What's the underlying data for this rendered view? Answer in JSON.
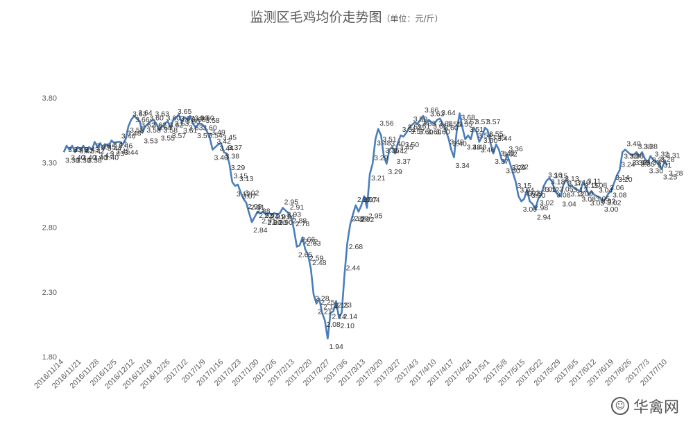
{
  "chart_data": {
    "type": "line",
    "title": "监测区毛鸡均价走势图",
    "subtitle": "（单位：元/斤）",
    "xlabel": "",
    "ylabel": "",
    "ylim": [
      1.8,
      3.8
    ],
    "yticks": [
      "1.80",
      "2.30",
      "2.80",
      "3.30",
      "3.80"
    ],
    "grid": false,
    "line_color": "#4a7ebb",
    "xticks": [
      "2016/11/14",
      "2016/11/21",
      "2016/11/28",
      "2016/12/5",
      "2016/12/12",
      "2016/12/19",
      "2016/12/26",
      "2017/1/2",
      "2017/1/9",
      "2017/1/16",
      "2017/1/23",
      "2017/1/30",
      "2017/2/6",
      "2017/2/13",
      "2017/2/20",
      "2017/2/27",
      "2017/3/6",
      "2017/3/13",
      "2017/3/20",
      "2017/3/27",
      "2017/4/3",
      "2017/4/10",
      "2017/4/17",
      "2017/4/24",
      "2017/5/1",
      "2017/5/8",
      "2017/5/15",
      "2017/5/22",
      "2017/5/29",
      "2017/6/5",
      "2017/6/12",
      "2017/6/19",
      "2017/6/26",
      "2017/7/3",
      "2017/7/10"
    ],
    "series": [
      {
        "values": [
          3.38,
          3.43,
          3.4,
          3.43,
          3.38,
          3.42,
          3.4,
          3.43,
          3.38,
          3.42,
          3.4,
          3.46,
          3.42,
          3.45,
          3.4,
          3.44,
          3.43,
          3.47,
          3.45,
          3.46,
          3.46,
          3.44,
          3.48,
          3.58,
          3.63,
          3.66,
          3.64,
          3.62,
          3.53,
          3.58,
          3.6,
          3.62,
          3.63,
          3.6,
          3.55,
          3.58,
          3.6,
          3.62,
          3.57,
          3.63,
          3.65,
          3.67,
          3.61,
          3.65,
          3.63,
          3.66,
          3.6,
          3.57,
          3.6,
          3.6,
          3.58,
          3.54,
          3.49,
          3.4,
          3.42,
          3.44,
          3.45,
          3.38,
          3.37,
          3.29,
          3.15,
          3.12,
          3.13,
          3.07,
          3.02,
          2.99,
          2.91,
          2.84,
          2.88,
          2.92,
          2.91,
          2.92,
          2.9,
          2.91,
          2.9,
          2.91,
          2.9,
          2.91,
          2.95,
          2.93,
          2.91,
          2.88,
          2.78,
          2.65,
          2.66,
          2.72,
          2.63,
          2.59,
          2.48,
          2.28,
          2.21,
          2.25,
          2.14,
          2.08,
          1.94,
          2.14,
          2.15,
          2.23,
          2.1,
          2.14,
          2.44,
          2.68,
          2.82,
          2.9,
          2.97,
          2.92,
          2.97,
          3.04,
          2.95,
          3.21,
          3.29,
          3.48,
          3.56,
          3.51,
          3.35,
          3.29,
          3.4,
          3.42,
          3.37,
          3.45,
          3.51,
          3.5,
          3.53,
          3.57,
          3.59,
          3.61,
          3.6,
          3.63,
          3.66,
          3.6,
          3.63,
          3.61,
          3.6,
          3.63,
          3.64,
          3.6,
          3.55,
          3.49,
          3.4,
          3.34,
          3.55,
          3.68,
          3.57,
          3.48,
          3.51,
          3.48,
          3.57,
          3.54,
          3.46,
          3.5,
          3.57,
          3.55,
          3.45,
          3.37,
          3.44,
          3.4,
          3.32,
          3.3,
          3.36,
          3.29,
          3.22,
          3.15,
          3.04,
          3.0,
          3.02,
          3.09,
          3.0,
          2.98,
          2.94,
          3.02,
          3.05,
          3.12,
          3.16,
          3.18,
          3.15,
          3.08,
          3.05,
          3.04,
          3.13,
          3.17,
          3.12,
          3.12,
          3.1,
          3.09,
          3.08,
          3.15,
          3.11,
          3.05,
          3.08,
          3.05,
          3.04,
          3.03,
          3.0,
          3.02,
          3.06,
          3.08,
          3.14,
          3.2,
          3.24,
          3.38,
          3.4,
          3.38,
          3.36,
          3.36,
          3.38,
          3.35,
          3.38,
          3.33,
          3.3,
          3.35,
          3.32,
          3.31,
          3.28,
          3.25,
          3.31,
          3.28
        ]
      }
    ]
  },
  "watermark": {
    "text": "华禽网",
    "logo_glyph": "☺"
  }
}
